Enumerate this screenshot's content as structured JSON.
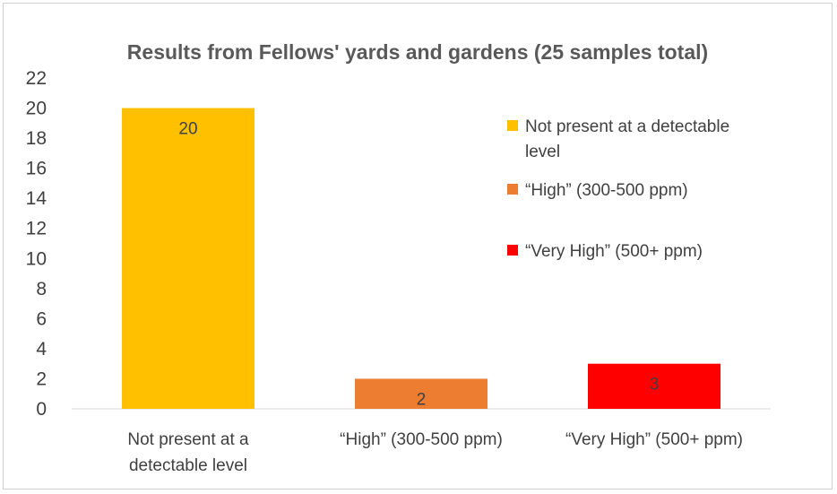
{
  "chart_data": {
    "type": "bar",
    "title": "Results from Fellows' yards and gardens (25 samples total)",
    "categories": [
      [
        "Not present at a",
        "detectable level"
      ],
      [
        "“High” (300-500 ppm)"
      ],
      [
        "“Very High” (500+ ppm)"
      ]
    ],
    "values": [
      20,
      2,
      3
    ],
    "data_labels": [
      "20",
      "2",
      "3"
    ],
    "colors": [
      "#FFC000",
      "#ED7D31",
      "#FF0000"
    ],
    "ylim": [
      0,
      22
    ],
    "yticks": [
      "0",
      "2",
      "4",
      "6",
      "8",
      "10",
      "12",
      "14",
      "16",
      "18",
      "20",
      "22"
    ],
    "xlabel": "",
    "ylabel": "",
    "grid": false,
    "legend_position": "right",
    "legend": [
      {
        "label": [
          "Not present at a detectable",
          "level"
        ],
        "color": "#FFC000"
      },
      {
        "label": [
          "“High” (300-500 ppm)"
        ],
        "color": "#ED7D31"
      },
      {
        "label": [
          "“Very High” (500+ ppm)"
        ],
        "color": "#FF0000"
      }
    ]
  }
}
